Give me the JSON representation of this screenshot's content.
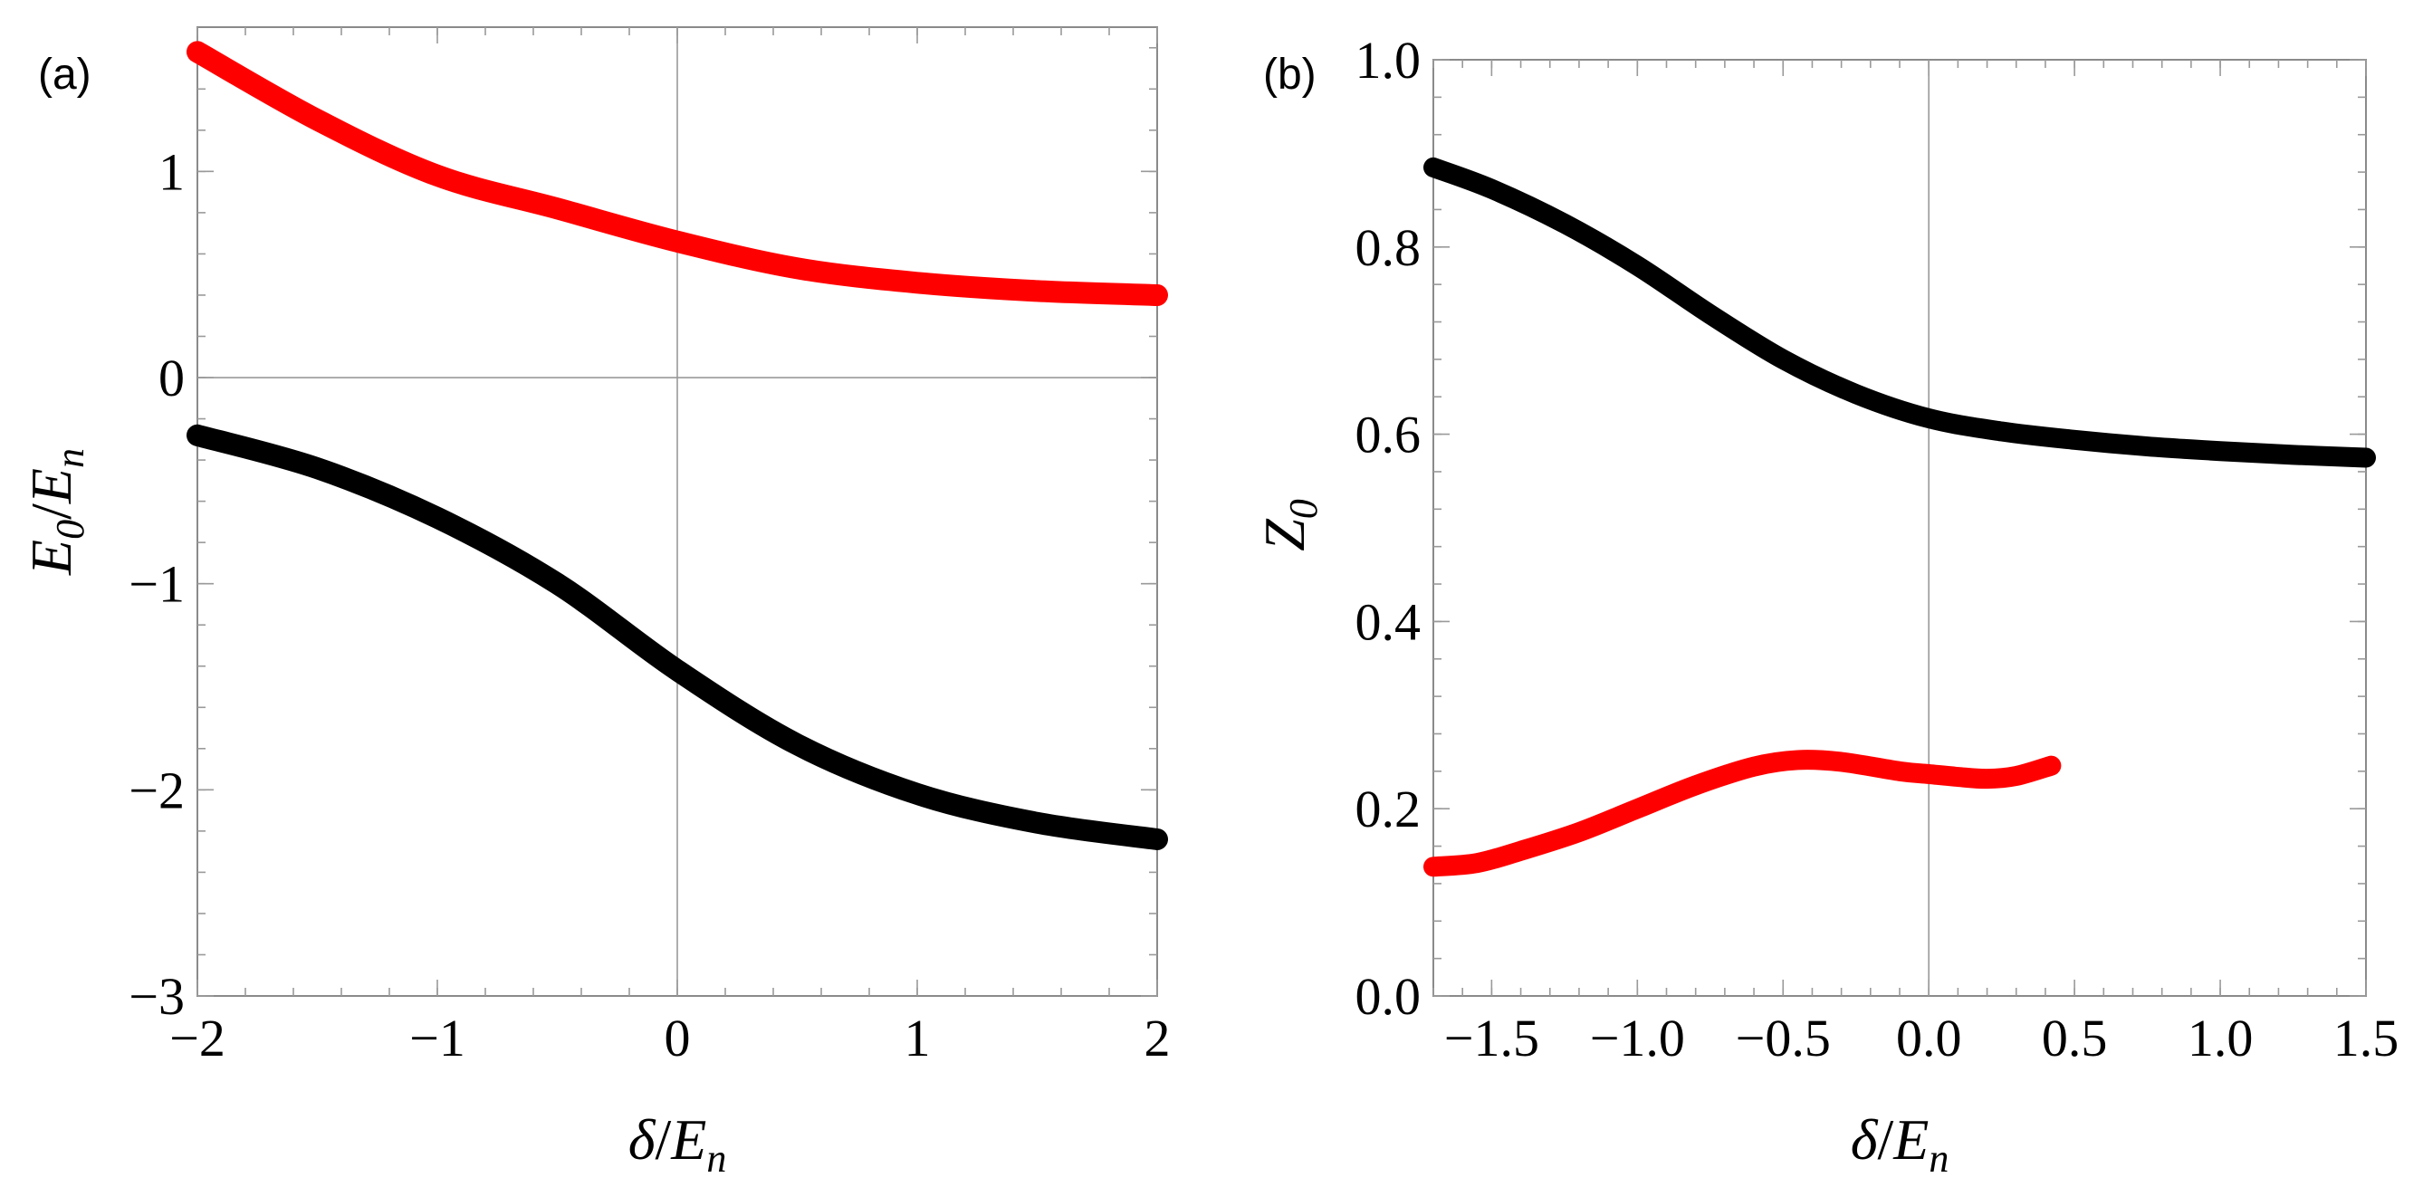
{
  "chart_data": [
    {
      "type": "line",
      "panel_label": "(a)",
      "xlabel": "δ/E_n",
      "ylabel": "E_0/E_n",
      "xlim": [
        -2,
        2
      ],
      "ylim": [
        -3,
        1.7
      ],
      "xticks": [
        -2,
        -1,
        0,
        1,
        2
      ],
      "xtick_labels": [
        "−2",
        "−1",
        "0",
        "1",
        "2"
      ],
      "yticks": [
        -3,
        -2,
        -1,
        0,
        1
      ],
      "ytick_labels": [
        "−3",
        "−2",
        "−1",
        "0",
        "1"
      ],
      "zero_lines": {
        "x": 0,
        "y": 0
      },
      "series": [
        {
          "name": "upper",
          "color": "#ff0000",
          "x": [
            -2.0,
            -1.5,
            -1.0,
            -0.5,
            0.0,
            0.5,
            1.0,
            1.5,
            2.0
          ],
          "y": [
            1.58,
            1.25,
            0.98,
            0.82,
            0.66,
            0.53,
            0.46,
            0.42,
            0.4
          ]
        },
        {
          "name": "lower",
          "color": "#000000",
          "x": [
            -2.0,
            -1.5,
            -1.0,
            -0.5,
            0.0,
            0.5,
            1.0,
            1.5,
            2.0
          ],
          "y": [
            -0.28,
            -0.44,
            -0.68,
            -1.0,
            -1.42,
            -1.78,
            -2.02,
            -2.16,
            -2.24
          ]
        }
      ]
    },
    {
      "type": "line",
      "panel_label": "(b)",
      "xlabel": "δ/E_n",
      "ylabel": "Z_0",
      "xlim": [
        -1.7,
        1.5
      ],
      "ylim": [
        0.0,
        1.0
      ],
      "xticks": [
        -1.5,
        -1.0,
        -0.5,
        0.0,
        0.5,
        1.0,
        1.5
      ],
      "xtick_labels": [
        "−1.5",
        "−1.0",
        "−0.5",
        "0.0",
        "0.5",
        "1.0",
        "1.5"
      ],
      "yticks": [
        0.0,
        0.2,
        0.4,
        0.6,
        0.8,
        1.0
      ],
      "ytick_labels": [
        "0.0",
        "0.2",
        "0.4",
        "0.6",
        "0.8",
        "1.0"
      ],
      "zero_lines": {
        "x": 0
      },
      "series": [
        {
          "name": "black",
          "color": "#000000",
          "x": [
            -1.7,
            -1.5,
            -1.25,
            -1.0,
            -0.75,
            -0.5,
            -0.25,
            0.0,
            0.25,
            0.5,
            0.75,
            1.0,
            1.25,
            1.5
          ],
          "y": [
            0.885,
            0.862,
            0.825,
            0.78,
            0.728,
            0.68,
            0.643,
            0.617,
            0.603,
            0.594,
            0.587,
            0.582,
            0.578,
            0.575
          ]
        },
        {
          "name": "red",
          "color": "#ff0000",
          "x": [
            -1.7,
            -1.55,
            -1.4,
            -1.2,
            -1.0,
            -0.8,
            -0.6,
            -0.45,
            -0.3,
            -0.1,
            0.0,
            0.1,
            0.2,
            0.3,
            0.42
          ],
          "y": [
            0.138,
            0.142,
            0.155,
            0.175,
            0.2,
            0.225,
            0.245,
            0.252,
            0.25,
            0.24,
            0.237,
            0.234,
            0.232,
            0.235,
            0.246
          ]
        }
      ]
    }
  ]
}
